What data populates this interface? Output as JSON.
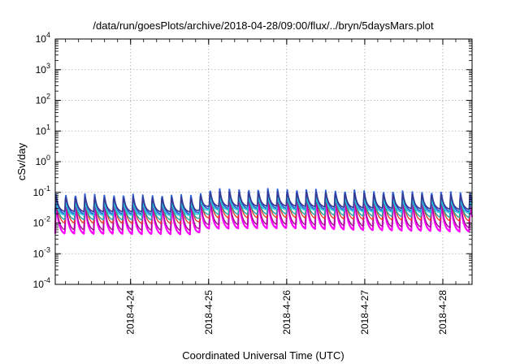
{
  "chart_data": {
    "type": "line",
    "title": "/data/run/goesPlots/archive/2018-04-28/09:00/flux/../bryn/5daysMars.plot",
    "xlabel": "Coordinated Universal Time (UTC)",
    "ylabel": "cSv/day",
    "y_scale": "log",
    "ylim": [
      0.0001,
      10000
    ],
    "y_ticks": [
      {
        "value": 0.0001,
        "base": "10",
        "exp": "-4"
      },
      {
        "value": 0.001,
        "base": "10",
        "exp": "-3"
      },
      {
        "value": 0.01,
        "base": "10",
        "exp": "-2"
      },
      {
        "value": 0.1,
        "base": "10",
        "exp": "-1"
      },
      {
        "value": 1,
        "base": "10",
        "exp": "0"
      },
      {
        "value": 10,
        "base": "10",
        "exp": "1"
      },
      {
        "value": 100,
        "base": "10",
        "exp": "2"
      },
      {
        "value": 1000,
        "base": "10",
        "exp": "3"
      },
      {
        "value": 10000,
        "base": "10",
        "exp": "4"
      }
    ],
    "xlim": [
      "2018-04-23 00:50",
      "2018-04-28 09:00"
    ],
    "x_ticks": [
      "2018-4-24",
      "2018-4-25",
      "2018-4-26",
      "2018-4-27",
      "2018-4-28"
    ],
    "grid": true,
    "pattern": {
      "period_hours": 2.96,
      "peak_phase": 0.08,
      "envelope": [
        [
          "2018-04-23 00:50",
          1.0
        ],
        [
          "2018-04-24 20:00",
          0.95
        ],
        [
          "2018-04-25 00:00",
          1.45
        ],
        [
          "2018-04-26 00:00",
          1.5
        ],
        [
          "2018-04-27 00:00",
          1.3
        ],
        [
          "2018-04-28 09:00",
          1.15
        ]
      ]
    },
    "series": [
      {
        "color": "#ff00ff",
        "peak": 0.055,
        "min": 0.0045,
        "width": 2.2
      },
      {
        "color": "#a01090",
        "peak": 0.06,
        "min": 0.006,
        "width": 1.4
      },
      {
        "color": "#e8341c",
        "peak": 0.085,
        "min": 0.01,
        "width": 1.3
      },
      {
        "color": "#2aa4a8",
        "peak": 0.07,
        "min": 0.013,
        "width": 1.5
      },
      {
        "color": "#2f64d8",
        "peak": 0.09,
        "min": 0.02,
        "width": 2.0
      },
      {
        "color": "#20c8d8",
        "peak": 0.05,
        "min": 0.018,
        "width": 1.4
      },
      {
        "color": "#383890",
        "peak": 0.075,
        "min": 0.024,
        "width": 1.6
      }
    ]
  }
}
